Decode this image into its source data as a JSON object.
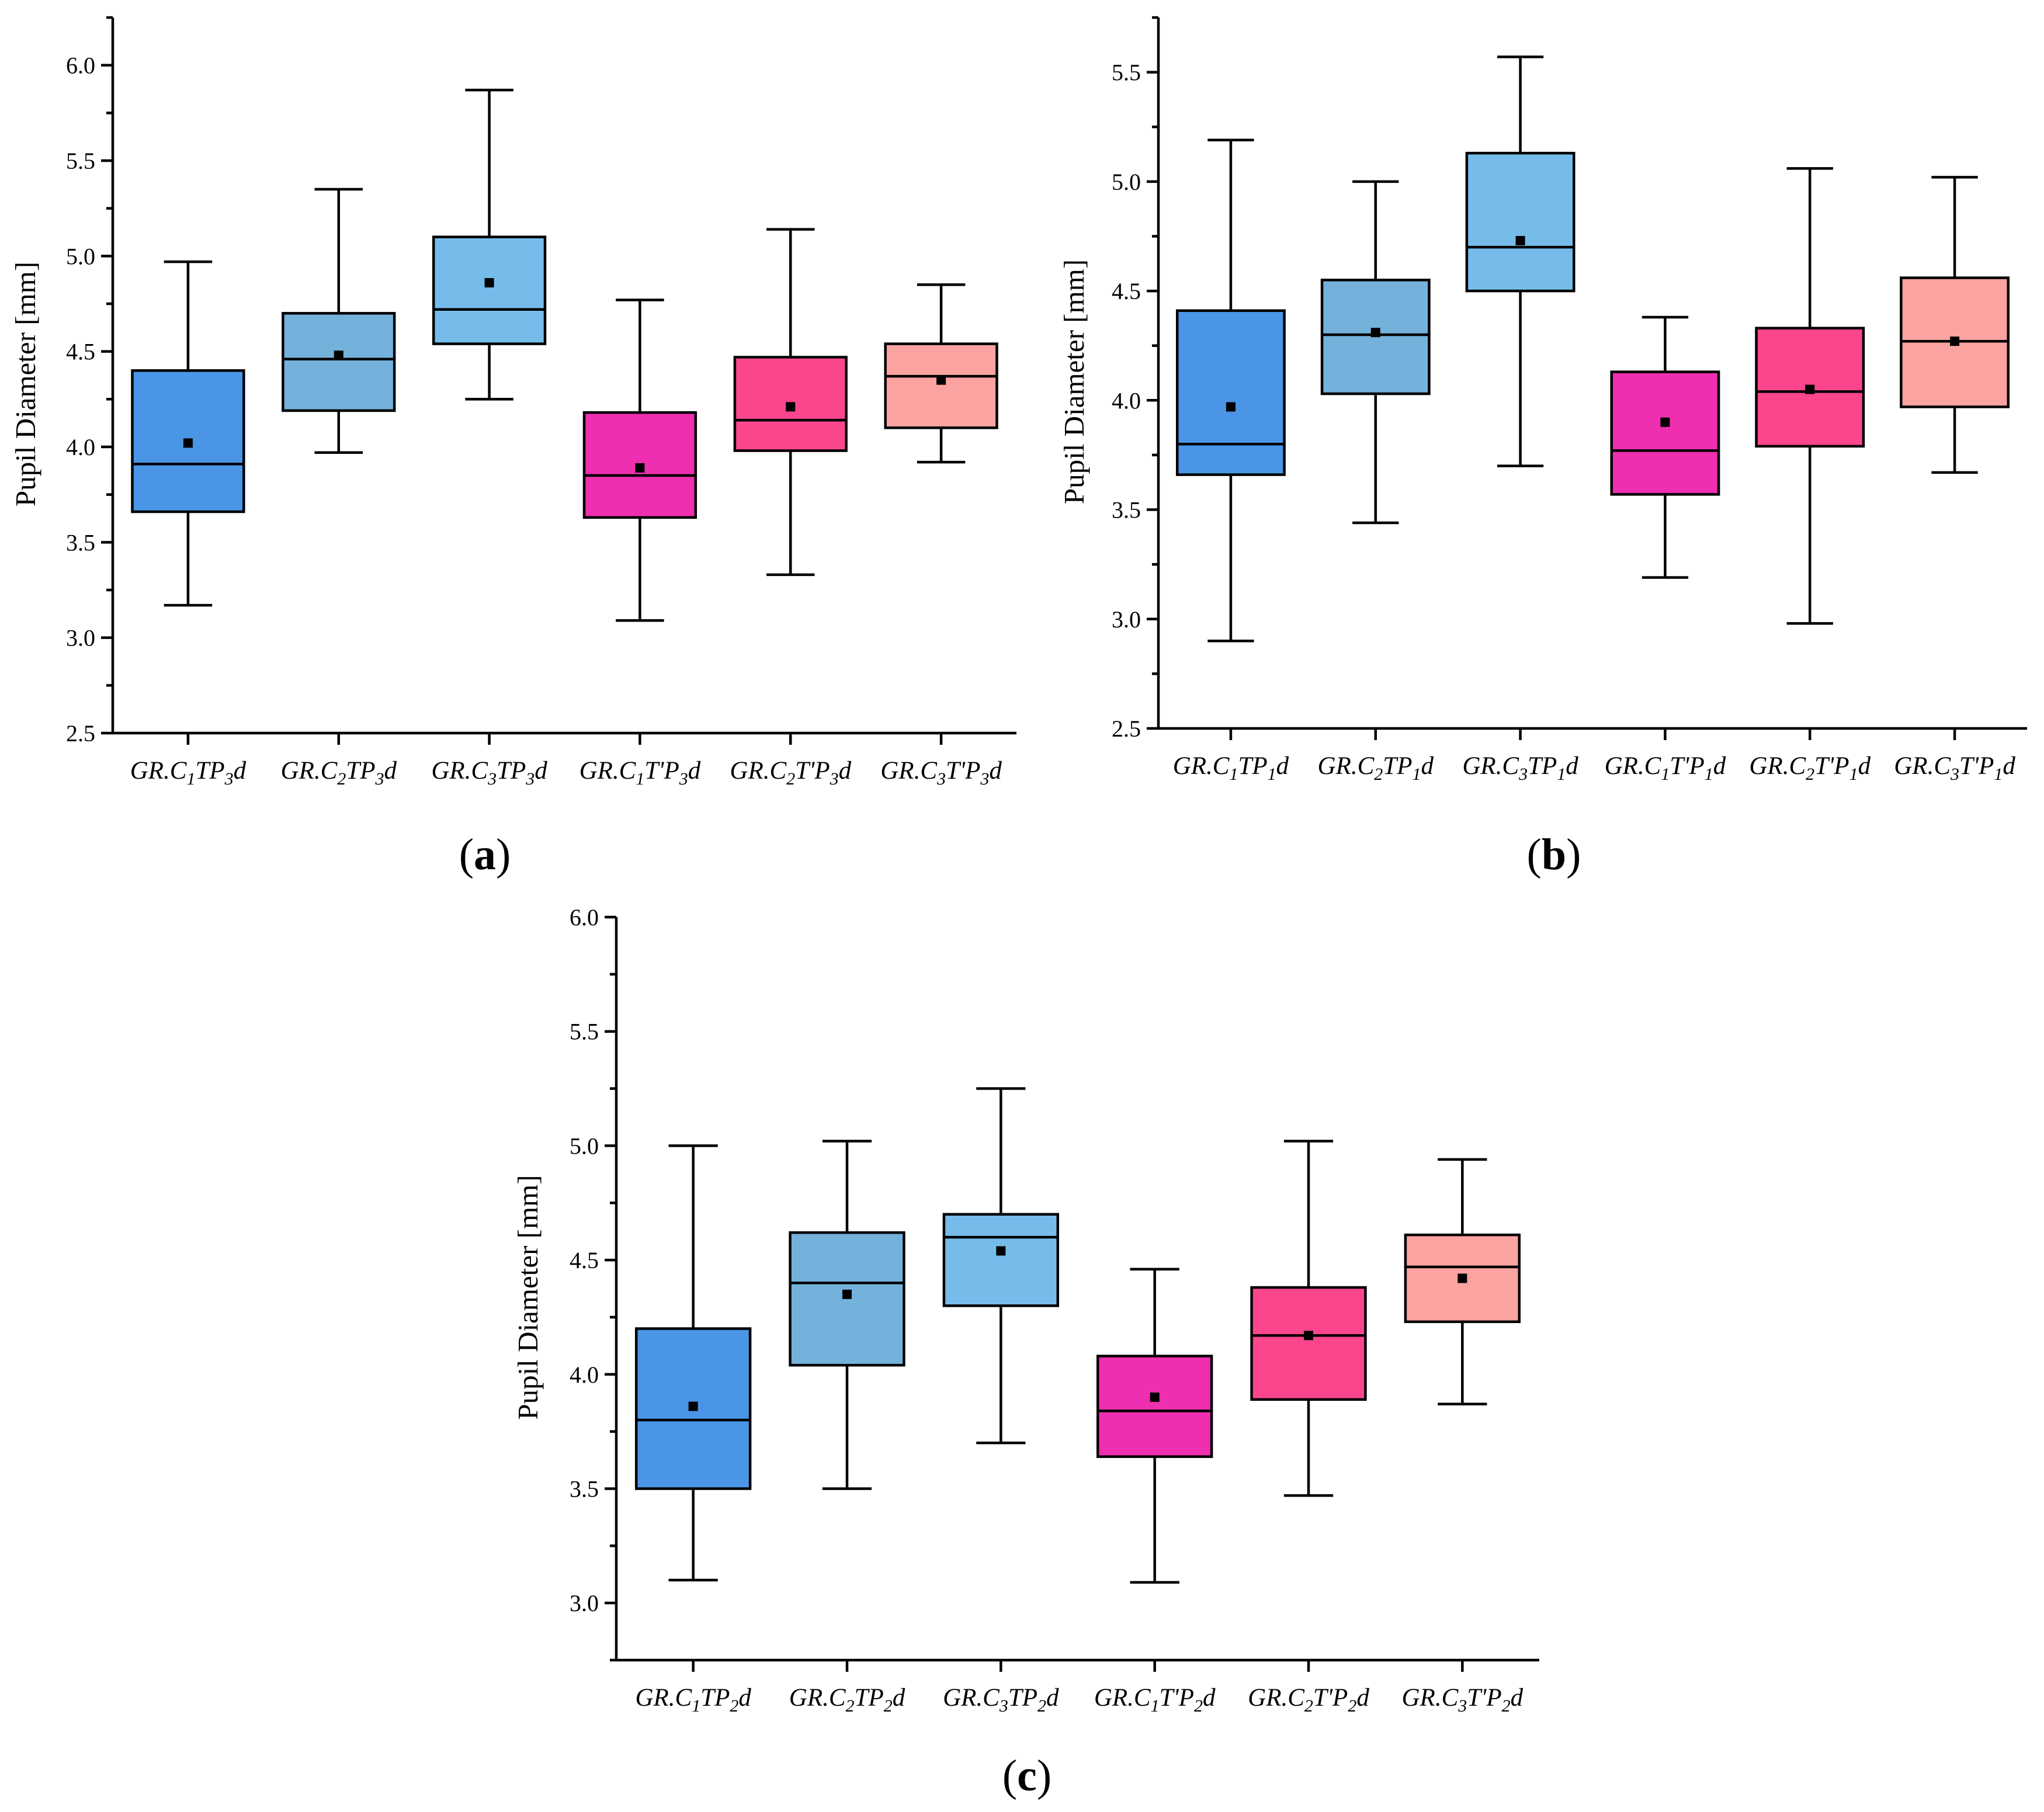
{
  "chart_data": [
    {
      "type": "box",
      "panel_label": "(a)",
      "ylabel": "Pupil Diameter [mm]",
      "ylim": [
        2.5,
        6.25
      ],
      "yticks": [
        2.5,
        3.0,
        3.5,
        4.0,
        4.5,
        5.0,
        5.5,
        6.0
      ],
      "ytick_labels": [
        "2.5",
        "3.0",
        "3.5",
        "4.0",
        "4.5",
        "5.0",
        "5.5",
        "6.0"
      ],
      "categories": [
        {
          "prefix": "GR.C",
          "c": "1",
          "mid": "TP",
          "p": "3",
          "suffix": "d",
          "color": "#4A95E6",
          "min": 3.17,
          "q1": 3.66,
          "median": 3.91,
          "q3": 4.4,
          "max": 4.97,
          "mean": 4.02
        },
        {
          "prefix": "GR.C",
          "c": "2",
          "mid": "TP",
          "p": "3",
          "suffix": "d",
          "color": "#74B2DB",
          "min": 3.97,
          "q1": 4.19,
          "median": 4.46,
          "q3": 4.7,
          "max": 5.35,
          "mean": 4.48
        },
        {
          "prefix": "GR.C",
          "c": "3",
          "mid": "TP",
          "p": "3",
          "suffix": "d",
          "color": "#76BCEA",
          "min": 4.25,
          "q1": 4.54,
          "median": 4.72,
          "q3": 5.1,
          "max": 5.87,
          "mean": 4.86
        },
        {
          "prefix": "GR.C",
          "c": "1",
          "mid": "T'P",
          "p": "3",
          "suffix": "d",
          "color": "#EE2FAF",
          "min": 3.09,
          "q1": 3.63,
          "median": 3.85,
          "q3": 4.18,
          "max": 4.77,
          "mean": 3.89
        },
        {
          "prefix": "GR.C",
          "c": "2",
          "mid": "T'P",
          "p": "3",
          "suffix": "d",
          "color": "#FB468E",
          "min": 3.33,
          "q1": 3.98,
          "median": 4.14,
          "q3": 4.47,
          "max": 5.14,
          "mean": 4.21
        },
        {
          "prefix": "GR.C",
          "c": "3",
          "mid": "T'P",
          "p": "3",
          "suffix": "d",
          "color": "#FAA3A1",
          "min": 3.92,
          "q1": 4.1,
          "median": 4.37,
          "q3": 4.54,
          "max": 4.85,
          "mean": 4.35
        }
      ]
    },
    {
      "type": "box",
      "panel_label": "(b)",
      "ylabel": "Pupil Diameter [mm]",
      "ylim": [
        2.5,
        5.75
      ],
      "yticks": [
        2.5,
        3.0,
        3.5,
        4.0,
        4.5,
        5.0,
        5.5
      ],
      "ytick_labels": [
        "2.5",
        "3.0",
        "3.5",
        "4.0",
        "4.5",
        "5.0",
        "5.5"
      ],
      "categories": [
        {
          "prefix": "GR.C",
          "c": "1",
          "mid": "TP",
          "p": "1",
          "suffix": "d",
          "color": "#4A95E6",
          "min": 2.9,
          "q1": 3.66,
          "median": 3.8,
          "q3": 4.41,
          "max": 5.19,
          "mean": 3.97
        },
        {
          "prefix": "GR.C",
          "c": "2",
          "mid": "TP",
          "p": "1",
          "suffix": "d",
          "color": "#74B2DB",
          "min": 3.44,
          "q1": 4.03,
          "median": 4.3,
          "q3": 4.55,
          "max": 5.0,
          "mean": 4.31
        },
        {
          "prefix": "GR.C",
          "c": "3",
          "mid": "TP",
          "p": "1",
          "suffix": "d",
          "color": "#76BCEA",
          "min": 3.7,
          "q1": 4.5,
          "median": 4.7,
          "q3": 5.13,
          "max": 5.57,
          "mean": 4.73
        },
        {
          "prefix": "GR.C",
          "c": "1",
          "mid": "T'P",
          "p": "1",
          "suffix": "d",
          "color": "#EE2FAF",
          "min": 3.19,
          "q1": 3.57,
          "median": 3.77,
          "q3": 4.13,
          "max": 4.38,
          "mean": 3.9
        },
        {
          "prefix": "GR.C",
          "c": "2",
          "mid": "T'P",
          "p": "1",
          "suffix": "d",
          "color": "#FB468E",
          "min": 2.98,
          "q1": 3.79,
          "median": 4.04,
          "q3": 4.33,
          "max": 5.06,
          "mean": 4.05
        },
        {
          "prefix": "GR.C",
          "c": "3",
          "mid": "T'P",
          "p": "1",
          "suffix": "d",
          "color": "#FAA3A1",
          "min": 3.67,
          "q1": 3.97,
          "median": 4.27,
          "q3": 4.56,
          "max": 5.02,
          "mean": 4.27
        }
      ]
    },
    {
      "type": "box",
      "panel_label": "(c)",
      "ylabel": "Pupil Diameter [mm]",
      "ylim": [
        2.75,
        6.0
      ],
      "yticks": [
        3.0,
        3.5,
        4.0,
        4.5,
        5.0,
        5.5,
        6.0
      ],
      "ytick_labels": [
        "3.0",
        "3.5",
        "4.0",
        "4.5",
        "5.0",
        "5.5",
        "6.0"
      ],
      "categories": [
        {
          "prefix": "GR.C",
          "c": "1",
          "mid": "TP",
          "p": "2",
          "suffix": "d",
          "color": "#4A95E6",
          "min": 3.1,
          "q1": 3.5,
          "median": 3.8,
          "q3": 4.2,
          "max": 5.0,
          "mean": 3.86
        },
        {
          "prefix": "GR.C",
          "c": "2",
          "mid": "TP",
          "p": "2",
          "suffix": "d",
          "color": "#74B2DB",
          "min": 3.5,
          "q1": 4.04,
          "median": 4.4,
          "q3": 4.62,
          "max": 5.02,
          "mean": 4.35
        },
        {
          "prefix": "GR.C",
          "c": "3",
          "mid": "TP",
          "p": "2",
          "suffix": "d",
          "color": "#76BCEA",
          "min": 3.7,
          "q1": 4.3,
          "median": 4.6,
          "q3": 4.7,
          "max": 5.25,
          "mean": 4.54
        },
        {
          "prefix": "GR.C",
          "c": "1",
          "mid": "T'P",
          "p": "2",
          "suffix": "d",
          "color": "#EE2FAF",
          "min": 3.09,
          "q1": 3.64,
          "median": 3.84,
          "q3": 4.08,
          "max": 4.46,
          "mean": 3.9
        },
        {
          "prefix": "GR.C",
          "c": "2",
          "mid": "T'P",
          "p": "2",
          "suffix": "d",
          "color": "#FB468E",
          "min": 3.47,
          "q1": 3.89,
          "median": 4.17,
          "q3": 4.38,
          "max": 5.02,
          "mean": 4.17
        },
        {
          "prefix": "GR.C",
          "c": "3",
          "mid": "T'P",
          "p": "2",
          "suffix": "d",
          "color": "#FAA3A1",
          "min": 3.87,
          "q1": 4.23,
          "median": 4.47,
          "q3": 4.61,
          "max": 4.94,
          "mean": 4.42
        }
      ]
    }
  ]
}
